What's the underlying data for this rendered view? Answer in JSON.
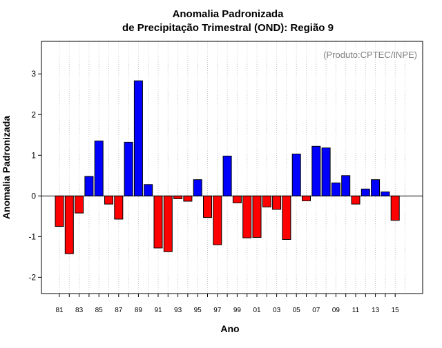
{
  "chart_data": {
    "type": "bar",
    "title_line1": "Anomalia Padronizada",
    "title_line2": "de Precipitação Trimestral (OND): Região 9",
    "xlabel": "Ano",
    "ylabel": "Anomalia Padronizada",
    "source_note": "(Produto:CPTEC/INPE)",
    "ylim": [
      -2.4,
      3.8
    ],
    "yticks": [
      -2,
      -1,
      0,
      1,
      2,
      3
    ],
    "grid": "vertical-dotted",
    "colors": {
      "positive": "#0000ff",
      "negative": "#ff0000",
      "stroke": "#000000"
    },
    "categories": [
      "81",
      "82",
      "83",
      "84",
      "85",
      "86",
      "87",
      "88",
      "89",
      "90",
      "91",
      "92",
      "93",
      "94",
      "95",
      "96",
      "97",
      "98",
      "99",
      "00",
      "01",
      "02",
      "03",
      "04",
      "05",
      "06",
      "07",
      "08",
      "09",
      "10",
      "11",
      "12",
      "13",
      "14",
      "15"
    ],
    "tick_labels_shown": [
      "81",
      "83",
      "85",
      "87",
      "89",
      "91",
      "93",
      "95",
      "97",
      "99",
      "01",
      "03",
      "05",
      "07",
      "09",
      "11",
      "13",
      "15"
    ],
    "values": [
      -0.75,
      -1.42,
      -0.42,
      0.48,
      1.35,
      -0.2,
      -0.57,
      1.32,
      2.83,
      0.28,
      -1.28,
      -1.37,
      -0.07,
      -0.13,
      0.4,
      -0.53,
      -1.2,
      0.98,
      -0.17,
      -1.03,
      -1.02,
      -0.27,
      -0.33,
      -1.07,
      1.03,
      -0.12,
      1.22,
      1.18,
      0.32,
      0.5,
      -0.2,
      0.17,
      0.4,
      0.1,
      -0.6
    ]
  }
}
